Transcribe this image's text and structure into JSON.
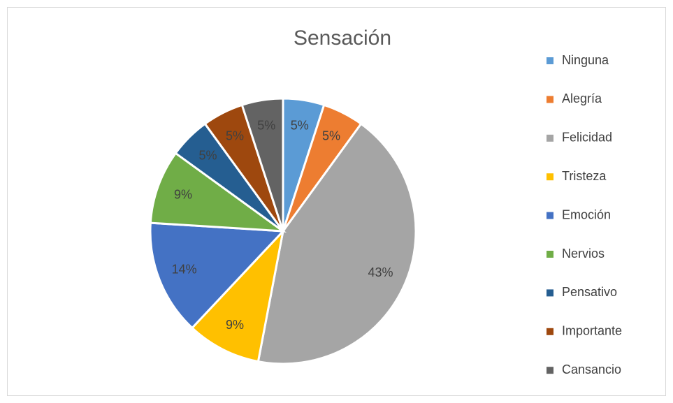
{
  "chart_data": {
    "type": "pie",
    "title": "Sensación",
    "categories": [
      "Ninguna",
      "Alegría",
      "Felicidad",
      "Tristeza",
      "Emoción",
      "Nervios",
      "Pensativo",
      "Importante",
      "Cansancio"
    ],
    "values": [
      5,
      5,
      43,
      9,
      14,
      9,
      5,
      5,
      5
    ],
    "value_labels": [
      "5%",
      "5%",
      "43%",
      "9%",
      "14%",
      "9%",
      "5%",
      "5%",
      "5%"
    ],
    "colors": [
      "#5b9bd5",
      "#ed7d31",
      "#a5a5a5",
      "#ffc000",
      "#4472c4",
      "#70ad47",
      "#255e91",
      "#9e480e",
      "#636363"
    ],
    "legend": "right"
  }
}
